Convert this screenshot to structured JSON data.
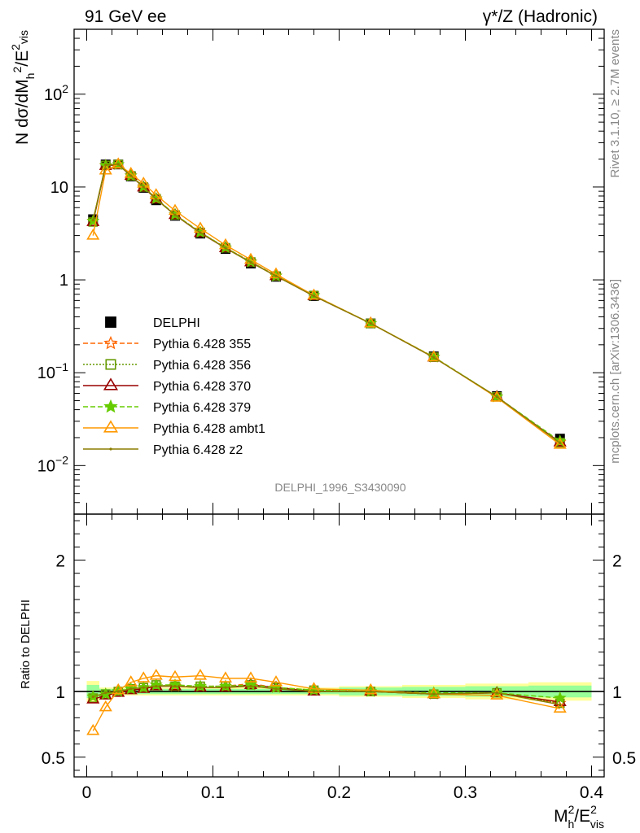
{
  "header": {
    "left_title": "91 GeV ee",
    "right_title": "γ*/Z (Hadronic)"
  },
  "side": {
    "rivet": "Rivet 3.1.10, ≥ 2.7M events",
    "source": "mcplots.cern.ch [arXiv:1306.3436]"
  },
  "watermark": "DELPHI_1996_S3430090",
  "chart_data": [
    {
      "type": "line",
      "yscale": "log",
      "ylabel": "N dσ/dM_h^2/E_vis^2",
      "ylim": [
        0.003,
        500
      ],
      "ytick_labels": [
        "10^-2",
        "10^-1",
        "1",
        "10",
        "10^2"
      ],
      "legend_position": "center-left",
      "x": [
        0.005,
        0.015,
        0.025,
        0.035,
        0.045,
        0.055,
        0.07,
        0.09,
        0.11,
        0.13,
        0.15,
        0.18,
        0.225,
        0.275,
        0.325,
        0.375
      ],
      "series": [
        {
          "name": "DELPHI",
          "style": "data",
          "color": "#000000",
          "marker": "square",
          "values": [
            4.5,
            17.5,
            17.5,
            13.0,
            9.8,
            7.2,
            4.9,
            3.15,
            2.15,
            1.5,
            1.08,
            0.67,
            0.34,
            0.15,
            0.056,
            0.0195
          ]
        },
        {
          "name": "Pythia 6.428 355",
          "color": "#ff6600",
          "dash": "6,3",
          "marker": "star",
          "values": [
            4.3,
            17.0,
            17.5,
            13.3,
            10.1,
            7.5,
            5.05,
            3.25,
            2.22,
            1.57,
            1.11,
            0.68,
            0.34,
            0.147,
            0.055,
            0.0178
          ]
        },
        {
          "name": "Pythia 6.428 356",
          "color": "#669900",
          "dash": "2,2",
          "marker": "open-square",
          "values": [
            4.2,
            17.1,
            17.5,
            13.2,
            10.0,
            7.5,
            5.0,
            3.25,
            2.22,
            1.56,
            1.1,
            0.68,
            0.34,
            0.147,
            0.055,
            0.0177
          ]
        },
        {
          "name": "Pythia 6.428 370",
          "color": "#990000",
          "dash": "",
          "marker": "open-triangle",
          "values": [
            4.2,
            16.9,
            17.4,
            13.2,
            9.9,
            7.4,
            5.0,
            3.2,
            2.2,
            1.55,
            1.1,
            0.67,
            0.34,
            0.146,
            0.055,
            0.0178
          ]
        },
        {
          "name": "Pythia 6.428 379",
          "color": "#66cc00",
          "dash": "6,3",
          "marker": "star",
          "values": [
            4.3,
            17.1,
            17.5,
            13.2,
            10.0,
            7.5,
            5.05,
            3.25,
            2.22,
            1.56,
            1.1,
            0.68,
            0.34,
            0.148,
            0.055,
            0.0183
          ]
        },
        {
          "name": "Pythia 6.428 ambt1",
          "color": "#ff9900",
          "dash": "",
          "marker": "open-triangle",
          "values": [
            3.0,
            15.1,
            17.6,
            13.9,
            10.9,
            8.2,
            5.55,
            3.57,
            2.37,
            1.65,
            1.15,
            0.68,
            0.34,
            0.147,
            0.054,
            0.0168
          ]
        },
        {
          "name": "Pythia 6.428 z2",
          "color": "#8b7d00",
          "dash": "",
          "marker": "dot",
          "values": [
            4.4,
            17.3,
            17.6,
            13.2,
            10.0,
            7.4,
            5.0,
            3.22,
            2.2,
            1.54,
            1.1,
            0.67,
            0.34,
            0.146,
            0.055,
            0.0175
          ]
        }
      ]
    },
    {
      "type": "line",
      "ylabel": "Ratio to DELPHI",
      "xlabel": "M_h^2/E_vis^2",
      "xlim": [
        -0.01,
        0.41
      ],
      "ylim": [
        0.35,
        2.35
      ],
      "xtick_labels": [
        "0",
        "0.1",
        "0.2",
        "0.3",
        "0.4"
      ],
      "ytick_labels": [
        "0.5",
        "1",
        "2"
      ],
      "bands": {
        "x_edges": [
          0.0,
          0.01,
          0.02,
          0.03,
          0.04,
          0.05,
          0.06,
          0.08,
          0.1,
          0.12,
          0.14,
          0.16,
          0.2,
          0.25,
          0.3,
          0.35,
          0.4
        ],
        "yellow_halfwidth": [
          0.08,
          0.03,
          0.03,
          0.03,
          0.03,
          0.03,
          0.03,
          0.03,
          0.03,
          0.03,
          0.03,
          0.03,
          0.04,
          0.05,
          0.06,
          0.07
        ],
        "green_halfwidth": [
          0.05,
          0.02,
          0.02,
          0.02,
          0.02,
          0.02,
          0.02,
          0.02,
          0.02,
          0.02,
          0.02,
          0.02,
          0.03,
          0.035,
          0.04,
          0.045
        ]
      },
      "series": [
        {
          "name": "Pythia 6.428 355",
          "values": [
            0.96,
            0.98,
            1.0,
            1.02,
            1.03,
            1.05,
            1.04,
            1.04,
            1.04,
            1.06,
            1.03,
            1.01,
            1.0,
            0.98,
            0.99,
            0.91
          ]
        },
        {
          "name": "Pythia 6.428 356",
          "values": [
            0.95,
            0.98,
            1.0,
            1.02,
            1.03,
            1.05,
            1.04,
            1.04,
            1.04,
            1.05,
            1.03,
            1.01,
            1.0,
            0.98,
            0.99,
            0.91
          ]
        },
        {
          "name": "Pythia 6.428 370",
          "values": [
            0.94,
            0.97,
            0.99,
            1.01,
            1.02,
            1.04,
            1.04,
            1.03,
            1.03,
            1.05,
            1.03,
            1.0,
            1.0,
            0.98,
            0.99,
            0.92
          ]
        },
        {
          "name": "Pythia 6.428 379",
          "values": [
            0.96,
            0.98,
            1.0,
            1.02,
            1.03,
            1.05,
            1.05,
            1.04,
            1.04,
            1.05,
            1.03,
            1.01,
            1.0,
            0.99,
            0.99,
            0.95
          ]
        },
        {
          "name": "Pythia 6.428 ambt1",
          "values": [
            0.7,
            0.88,
            1.01,
            1.07,
            1.1,
            1.12,
            1.11,
            1.12,
            1.1,
            1.1,
            1.07,
            1.02,
            1.01,
            0.98,
            0.97,
            0.87
          ]
        },
        {
          "name": "Pythia 6.428 z2",
          "values": [
            0.96,
            0.99,
            1.0,
            1.02,
            1.03,
            1.04,
            1.04,
            1.03,
            1.03,
            1.04,
            1.02,
            1.0,
            1.0,
            0.98,
            0.99,
            0.9
          ]
        }
      ]
    }
  ]
}
